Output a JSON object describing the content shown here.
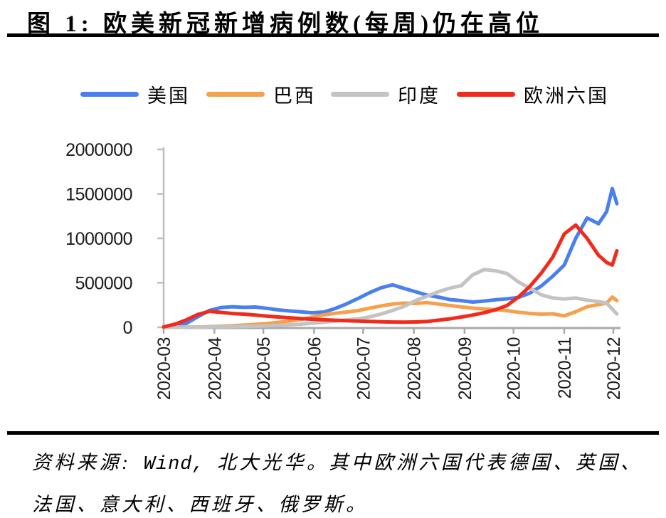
{
  "title": "图 1: 欧美新冠新增病例数(每周)仍在高位",
  "footer": {
    "source_prefix": "资料来源:",
    "source_wind": " Wind, ",
    "line1_rest": "北大光华。其中欧洲六国代表德国、英国、",
    "line2": "法国、意大利、西班牙、俄罗斯。"
  },
  "colors": {
    "us_blue": "#4A80EE",
    "brazil_orange": "#F5A04D",
    "india_gray": "#C3C3C3",
    "europe_red": "#F02B1C",
    "axis_gray": "#BDBDBD",
    "baseline_gray": "#A9A9A9",
    "label_black": "#1a1a1a",
    "rule_black": "#000000"
  },
  "chart_data": {
    "type": "line",
    "title": "欧美新冠新增病例数(每周)",
    "xlabel": "",
    "ylabel": "",
    "grid": false,
    "legend_position": "top",
    "y_axis": {
      "range": [
        0,
        2000000
      ],
      "ticks": [
        0,
        500000,
        1000000,
        1500000,
        2000000
      ],
      "tick_labels": [
        "0",
        "500000",
        "1000000",
        "1500000",
        "2000000"
      ]
    },
    "x_axis": {
      "ticks": [
        {
          "label": "2020-03",
          "week": 0
        },
        {
          "label": "2020-04",
          "week": 4.43
        },
        {
          "label": "2020-05",
          "week": 8.71
        },
        {
          "label": "2020-06",
          "week": 13.14
        },
        {
          "label": "2020-07",
          "week": 17.43
        },
        {
          "label": "2020-08",
          "week": 21.86
        },
        {
          "label": "2020-09",
          "week": 26.29
        },
        {
          "label": "2020-10",
          "week": 30.57
        },
        {
          "label": "2020-11",
          "week": 35.0
        },
        {
          "label": "2020-12",
          "week": 39.29
        }
      ]
    },
    "x_weeks": [
      0,
      1,
      2,
      3,
      4,
      5,
      6,
      7,
      8,
      9,
      10,
      11,
      12,
      13,
      14,
      15,
      16,
      17,
      18,
      19,
      20,
      21,
      22,
      23,
      24,
      25,
      26,
      27,
      28,
      29,
      30,
      31,
      32,
      33,
      34,
      35,
      36,
      37,
      38,
      38.7,
      39.2,
      39.6
    ],
    "series": [
      {
        "name": "美国",
        "color": "#4A80EE",
        "values": [
          0,
          6000,
          45000,
          120000,
          190000,
          222000,
          231000,
          224000,
          228000,
          214000,
          196000,
          184000,
          174000,
          163000,
          172000,
          212000,
          265000,
          325000,
          390000,
          445000,
          478000,
          438000,
          400000,
          362000,
          340000,
          312000,
          300000,
          284000,
          295000,
          310000,
          320000,
          335000,
          385000,
          465000,
          575000,
          700000,
          1000000,
          1230000,
          1165000,
          1300000,
          1560000,
          1390000
        ]
      },
      {
        "name": "巴西",
        "color": "#F5A04D",
        "values": [
          0,
          1000,
          2000,
          4000,
          7000,
          12000,
          18000,
          25000,
          33000,
          42000,
          55000,
          70000,
          90000,
          115000,
          140000,
          158000,
          172000,
          188000,
          215000,
          240000,
          262000,
          272000,
          268000,
          278000,
          262000,
          246000,
          230000,
          216000,
          206000,
          198000,
          188000,
          170000,
          156000,
          148000,
          152000,
          128000,
          175000,
          232000,
          255000,
          272000,
          340000,
          300000
        ]
      },
      {
        "name": "印度",
        "color": "#C3C3C3",
        "values": [
          1000,
          1000,
          2000,
          3000,
          5000,
          6000,
          8000,
          10000,
          13000,
          17000,
          22000,
          28000,
          36000,
          46000,
          57000,
          70000,
          85000,
          95000,
          118000,
          150000,
          190000,
          235000,
          300000,
          350000,
          400000,
          440000,
          468000,
          590000,
          650000,
          635000,
          605000,
          510000,
          440000,
          365000,
          330000,
          318000,
          330000,
          305000,
          290000,
          272000,
          205000,
          150000
        ]
      },
      {
        "name": "欧洲六国",
        "color": "#F02B1C",
        "values": [
          5000,
          35000,
          85000,
          145000,
          180000,
          168000,
          155000,
          148000,
          138000,
          126000,
          116000,
          107000,
          98000,
          91000,
          85000,
          79000,
          74000,
          70000,
          66000,
          62000,
          59000,
          58000,
          60000,
          65000,
          80000,
          95000,
          115000,
          138000,
          165000,
          198000,
          245000,
          340000,
          460000,
          610000,
          790000,
          1050000,
          1150000,
          1000000,
          810000,
          730000,
          700000,
          860000
        ]
      }
    ]
  }
}
